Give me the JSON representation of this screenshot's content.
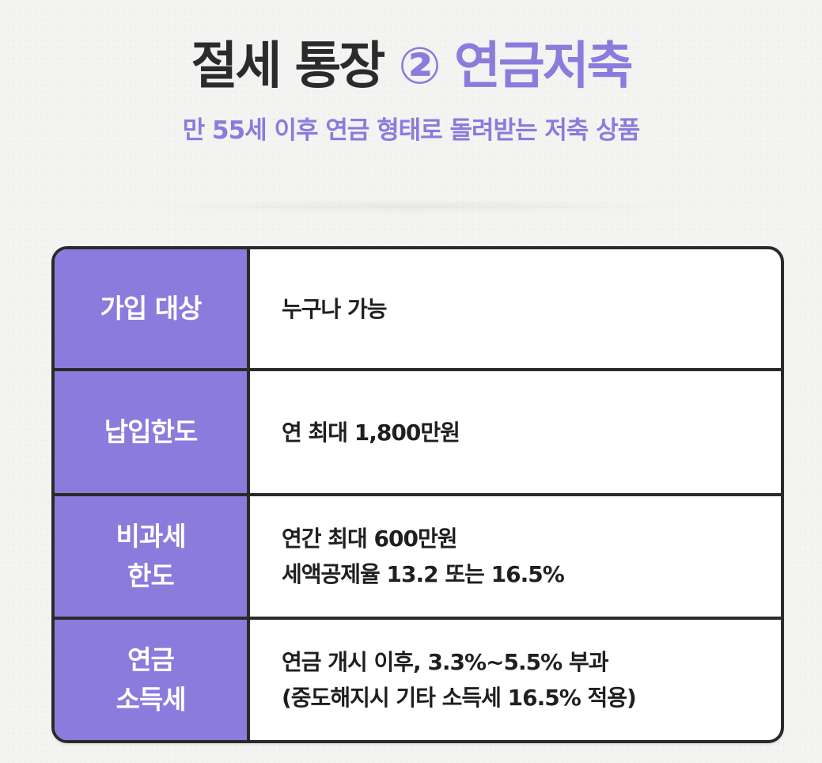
{
  "header": {
    "title_part1": "절세 통장",
    "title_num": "②",
    "title_part2": "연금저축",
    "subtitle": "만 55세 이후 연금 형태로 돌려받는 저축 상품"
  },
  "colors": {
    "accent": "#8a7bdc",
    "text_dark": "#2b2b2b",
    "border": "#2a2a2a",
    "background": "#f3f3f1"
  },
  "table": {
    "rows": [
      {
        "label": "가입 대상",
        "values": [
          "누구나 가능"
        ]
      },
      {
        "label": "납입한도",
        "values": [
          "연 최대 1,800만원"
        ]
      },
      {
        "label": "비과세\n한도",
        "values": [
          "연간 최대 600만원",
          "세액공제율 13.2 또는 16.5%"
        ]
      },
      {
        "label": "연금\n소득세",
        "values": [
          "연금 개시 이후, 3.3%~5.5% 부과",
          "(중도해지시 기타 소득세 16.5% 적용)"
        ]
      }
    ]
  }
}
